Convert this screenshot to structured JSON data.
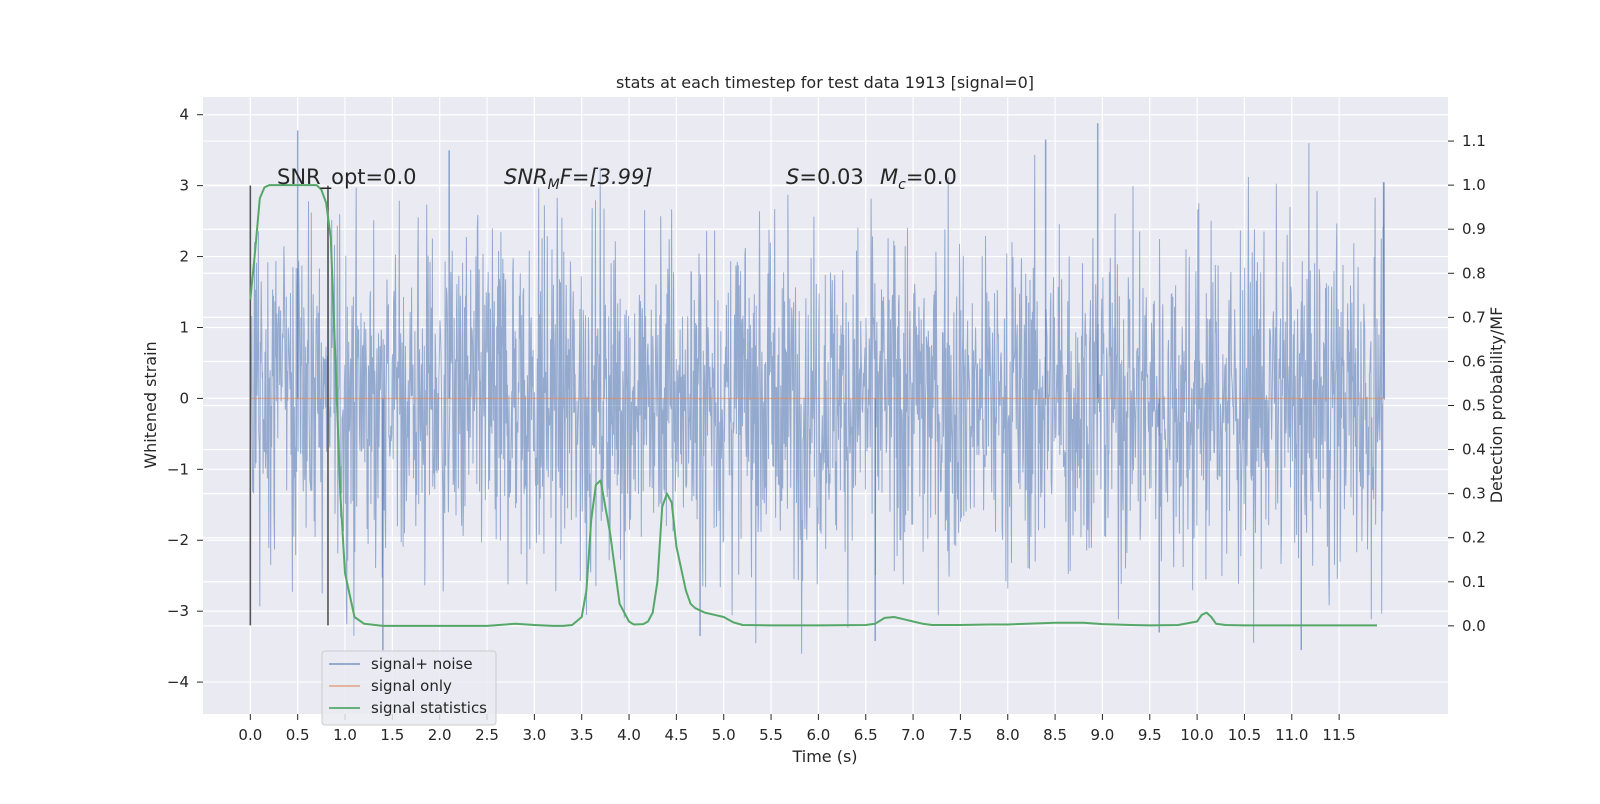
{
  "chart_data": {
    "type": "line",
    "title": "stats at each timestep for test data 1913 [signal=0]",
    "xlabel": "Time (s)",
    "ylabel": "Whitened strain",
    "ylabel_right": "Detection probability/MF",
    "xlim": [
      -0.5,
      12.65
    ],
    "ylim": [
      -4.45,
      4.25
    ],
    "ylim_right": [
      -0.2,
      1.2
    ],
    "x_ticks": [
      "0.0",
      "0.5",
      "1.0",
      "1.5",
      "2.0",
      "2.5",
      "3.0",
      "3.5",
      "4.0",
      "4.5",
      "5.0",
      "5.5",
      "6.0",
      "6.5",
      "7.0",
      "7.5",
      "8.0",
      "8.5",
      "9.0",
      "9.5",
      "10.0",
      "10.5",
      "11.0",
      "11.5"
    ],
    "y_ticks": [
      "4",
      "3",
      "2",
      "1",
      "0",
      "−1",
      "−2",
      "−3",
      "−4"
    ],
    "y_ticks_right": [
      "1.1",
      "1.0",
      "0.9",
      "0.8",
      "0.7",
      "0.6",
      "0.5",
      "0.4",
      "0.3",
      "0.2",
      "0.1",
      "0.0"
    ],
    "grid": true,
    "legend_position": "lower-left",
    "annotations": {
      "snr_opt": "SNR_opt=0.0",
      "snr_mf_main": "SNR",
      "snr_mf_sub": "M",
      "snr_mf_rest": "F=[3.99]",
      "s_main": "S",
      "s_rest": "=0.03",
      "mc_main": "M",
      "mc_sub": "c",
      "mc_rest": "=0.0"
    },
    "markers": {
      "window_start_s": 0.0,
      "window_end_s": 0.82,
      "ymin": -3.2,
      "ymax": 3.0
    },
    "series": [
      {
        "name": "signal+ noise",
        "color": "#4c72b0",
        "axis": "left",
        "x_range": [
          0.0,
          11.98
        ],
        "typical_amplitude": 1.2,
        "extremes": [
          {
            "x": 0.5,
            "y": 3.78
          },
          {
            "x": 1.4,
            "y": -3.55
          },
          {
            "x": 2.1,
            "y": 3.5
          },
          {
            "x": 4.75,
            "y": -3.35
          },
          {
            "x": 6.6,
            "y": -3.42
          },
          {
            "x": 8.4,
            "y": 3.65
          },
          {
            "x": 8.95,
            "y": 3.88
          },
          {
            "x": 9.6,
            "y": -3.3
          },
          {
            "x": 11.1,
            "y": -3.55
          },
          {
            "x": 11.97,
            "y": 3.05
          }
        ]
      },
      {
        "name": "signal only",
        "color": "#dd8452",
        "axis": "left",
        "x": [
          0.0,
          11.98
        ],
        "y": [
          0.0,
          0.0
        ]
      },
      {
        "name": "signal statistics",
        "color": "#55a868",
        "axis": "right",
        "x": [
          0.0,
          0.05,
          0.1,
          0.15,
          0.2,
          0.3,
          0.4,
          0.5,
          0.6,
          0.65,
          0.7,
          0.75,
          0.8,
          0.85,
          0.9,
          0.95,
          1.0,
          1.1,
          1.2,
          1.4,
          1.6,
          2.0,
          2.5,
          2.8,
          3.0,
          3.2,
          3.3,
          3.4,
          3.5,
          3.55,
          3.6,
          3.65,
          3.7,
          3.8,
          3.9,
          4.0,
          4.05,
          4.15,
          4.2,
          4.25,
          4.3,
          4.35,
          4.4,
          4.45,
          4.5,
          4.6,
          4.65,
          4.7,
          4.8,
          4.9,
          5.0,
          5.1,
          5.2,
          5.5,
          6.0,
          6.5,
          6.6,
          6.7,
          6.8,
          6.9,
          7.0,
          7.1,
          7.2,
          7.5,
          7.8,
          8.0,
          8.2,
          8.5,
          8.8,
          9.0,
          9.3,
          9.5,
          9.8,
          10.0,
          10.05,
          10.1,
          10.15,
          10.2,
          10.3,
          10.5,
          11.0,
          11.5,
          11.9
        ],
        "y": [
          0.74,
          0.85,
          0.97,
          0.995,
          1.0,
          1.0,
          1.0,
          1.0,
          1.0,
          1.0,
          1.0,
          0.99,
          0.96,
          0.88,
          0.6,
          0.3,
          0.12,
          0.02,
          0.005,
          0.0,
          0.0,
          0.0,
          0.0,
          0.005,
          0.002,
          0.0,
          0.0,
          0.002,
          0.02,
          0.08,
          0.24,
          0.32,
          0.33,
          0.21,
          0.05,
          0.01,
          0.003,
          0.004,
          0.01,
          0.03,
          0.1,
          0.27,
          0.3,
          0.28,
          0.18,
          0.08,
          0.05,
          0.04,
          0.03,
          0.025,
          0.02,
          0.008,
          0.002,
          0.001,
          0.001,
          0.002,
          0.005,
          0.018,
          0.02,
          0.015,
          0.01,
          0.005,
          0.002,
          0.002,
          0.003,
          0.003,
          0.005,
          0.007,
          0.007,
          0.004,
          0.002,
          0.001,
          0.002,
          0.01,
          0.025,
          0.03,
          0.02,
          0.005,
          0.002,
          0.001,
          0.001,
          0.001,
          0.001
        ]
      }
    ]
  }
}
